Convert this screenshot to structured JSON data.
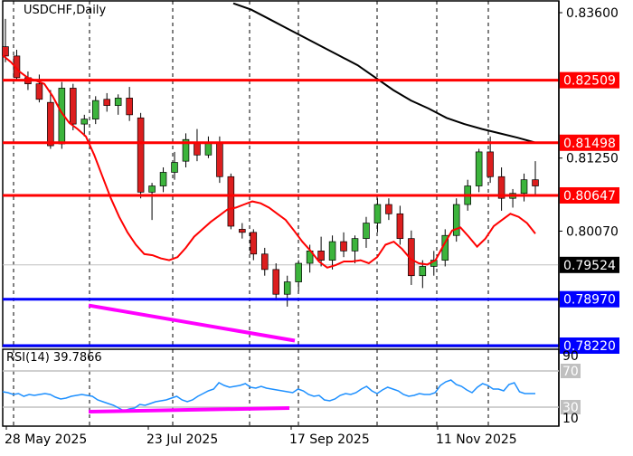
{
  "header": {
    "symbol_timeframe": "USDCHF,Daily",
    "rsi_label": "RSI(14) 39.7866"
  },
  "colors": {
    "background": "#ffffff",
    "frame": "#000000",
    "bull_candle": "#3cb43c",
    "bear_candle": "#dc1e1e",
    "resistance": "#ff0000",
    "support": "#0000ff",
    "divergence": "#ff00ff",
    "ma_fast": "#ff0000",
    "ma_slow": "#000000",
    "rsi_line": "#1e90ff",
    "rsi_levels": "#c0c0c0",
    "current_price_bg": "#000000"
  },
  "price_axis": {
    "ticks": [
      "0.83600",
      "0.81250",
      "0.80070"
    ],
    "tick_values": [
      0.836,
      0.8125,
      0.8007
    ]
  },
  "levels": [
    {
      "label": "0.82509",
      "value": 0.82509,
      "type": "resistance"
    },
    {
      "label": "0.81498",
      "value": 0.81498,
      "type": "resistance"
    },
    {
      "label": "0.80647",
      "value": 0.80647,
      "type": "resistance"
    },
    {
      "label": "0.78970",
      "value": 0.7897,
      "type": "support"
    },
    {
      "label": "0.78220",
      "value": 0.7822,
      "type": "support"
    }
  ],
  "current_price": {
    "label": "0.79524",
    "value": 0.79524
  },
  "rsi_axis": {
    "ticks": [
      "90",
      "70",
      "30",
      "10"
    ],
    "highlighted": [
      "70",
      "30"
    ]
  },
  "time_axis": {
    "labels": [
      "28 May 2025",
      "23 Jul 2025",
      "17 Sep 2025",
      "11 Nov 2025"
    ]
  },
  "chart_data": {
    "type": "candlestick",
    "title": "USDCHF,Daily",
    "xlabel": "",
    "ylabel": "",
    "ylim": [
      0.7818,
      0.8375
    ],
    "grid": "vertical dashed",
    "x_tick_labels": [
      "28 May 2025",
      "23 Jul 2025",
      "17 Sep 2025",
      "11 Nov 2025"
    ],
    "horizontal_levels": {
      "resistance": [
        0.82509,
        0.81498,
        0.80647
      ],
      "support": [
        0.7897,
        0.7822
      ]
    },
    "current_price": 0.79524,
    "indicators": {
      "ma_fast_approx": [
        0.8291,
        0.828,
        0.8265,
        0.8255,
        0.825,
        0.8245,
        0.8225,
        0.82,
        0.8182,
        0.8172,
        0.816,
        0.813,
        0.8095,
        0.806,
        0.803,
        0.8005,
        0.7985,
        0.797,
        0.7968,
        0.7963,
        0.796,
        0.7965,
        0.798,
        0.7998,
        0.801,
        0.8022,
        0.8032,
        0.8042,
        0.8045,
        0.805,
        0.8055,
        0.8052,
        0.8045,
        0.8035,
        0.8025,
        0.8008,
        0.799,
        0.7975,
        0.7958,
        0.7948,
        0.7952,
        0.7958,
        0.7958,
        0.796,
        0.7955,
        0.7965,
        0.7985,
        0.799,
        0.7978,
        0.7962,
        0.7955,
        0.7953,
        0.796,
        0.7985,
        0.8008,
        0.8013,
        0.7998,
        0.7982,
        0.7995,
        0.8015,
        0.8025,
        0.8035,
        0.803,
        0.802,
        0.8003
      ],
      "ma_slow_approx_label": "long-period moving average (black), declining from above 0.836 to ~0.8150",
      "ma_slow_approx": [
        0.8375,
        0.8365,
        0.835,
        0.8335,
        0.832,
        0.8305,
        0.829,
        0.8275,
        0.8255,
        0.8235,
        0.8218,
        0.8205,
        0.819,
        0.818,
        0.8172,
        0.8165,
        0.8158,
        0.815
      ],
      "rsi_period": 14,
      "rsi_current": 39.7866,
      "rsi_levels": [
        70,
        30
      ]
    },
    "annotations": [
      {
        "type": "bearish-price-divergence-line",
        "from_price": 0.7887,
        "to_price": 0.783,
        "note": "magenta line connecting lower lows in price"
      },
      {
        "type": "rsi-divergence-line",
        "from_rsi": 25,
        "to_rsi": 29,
        "note": "magenta line connecting higher lows in RSI"
      }
    ],
    "candles": [
      [
        0.8305,
        0.835,
        0.828,
        0.829
      ],
      [
        0.829,
        0.83,
        0.825,
        0.8255
      ],
      [
        0.8255,
        0.8265,
        0.8235,
        0.8245
      ],
      [
        0.8245,
        0.826,
        0.8215,
        0.822
      ],
      [
        0.8215,
        0.8235,
        0.814,
        0.8145
      ],
      [
        0.8148,
        0.8248,
        0.814,
        0.8238
      ],
      [
        0.8238,
        0.8245,
        0.817,
        0.818
      ],
      [
        0.818,
        0.8195,
        0.816,
        0.8188
      ],
      [
        0.8188,
        0.8225,
        0.818,
        0.8218
      ],
      [
        0.822,
        0.823,
        0.82,
        0.821
      ],
      [
        0.821,
        0.8228,
        0.8195,
        0.8222
      ],
      [
        0.8222,
        0.824,
        0.8185,
        0.8195
      ],
      [
        0.819,
        0.8198,
        0.806,
        0.807
      ],
      [
        0.807,
        0.8085,
        0.8025,
        0.808
      ],
      [
        0.808,
        0.811,
        0.807,
        0.8102
      ],
      [
        0.8102,
        0.8135,
        0.809,
        0.8118
      ],
      [
        0.812,
        0.8165,
        0.811,
        0.8155
      ],
      [
        0.815,
        0.8172,
        0.812,
        0.813
      ],
      [
        0.813,
        0.816,
        0.8125,
        0.815
      ],
      [
        0.815,
        0.816,
        0.8085,
        0.8095
      ],
      [
        0.8095,
        0.81,
        0.801,
        0.8015
      ],
      [
        0.801,
        0.802,
        0.7995,
        0.8005
      ],
      [
        0.8005,
        0.801,
        0.796,
        0.797
      ],
      [
        0.797,
        0.798,
        0.7935,
        0.7945
      ],
      [
        0.7945,
        0.7955,
        0.7895,
        0.7905
      ],
      [
        0.7905,
        0.7935,
        0.7885,
        0.7925
      ],
      [
        0.7925,
        0.796,
        0.791,
        0.7955
      ],
      [
        0.7955,
        0.7985,
        0.794,
        0.7975
      ],
      [
        0.7975,
        0.7998,
        0.795,
        0.796
      ],
      [
        0.796,
        0.8,
        0.7945,
        0.799
      ],
      [
        0.799,
        0.8005,
        0.7965,
        0.7975
      ],
      [
        0.7975,
        0.8,
        0.7955,
        0.7995
      ],
      [
        0.7995,
        0.803,
        0.798,
        0.802
      ],
      [
        0.802,
        0.806,
        0.8005,
        0.805
      ],
      [
        0.805,
        0.806,
        0.8025,
        0.8035
      ],
      [
        0.8035,
        0.8048,
        0.7985,
        0.7995
      ],
      [
        0.7995,
        0.8008,
        0.792,
        0.7935
      ],
      [
        0.7935,
        0.796,
        0.7915,
        0.795
      ],
      [
        0.795,
        0.7975,
        0.7935,
        0.796
      ],
      [
        0.796,
        0.801,
        0.795,
        0.8
      ],
      [
        0.8,
        0.806,
        0.799,
        0.805
      ],
      [
        0.805,
        0.809,
        0.804,
        0.808
      ],
      [
        0.808,
        0.814,
        0.807,
        0.8135
      ],
      [
        0.8135,
        0.816,
        0.8085,
        0.8095
      ],
      [
        0.8095,
        0.811,
        0.804,
        0.806
      ],
      [
        0.806,
        0.8075,
        0.8045,
        0.8068
      ],
      [
        0.8068,
        0.81,
        0.8055,
        0.809
      ],
      [
        0.809,
        0.812,
        0.8065,
        0.808
      ]
    ],
    "rsi_approx": [
      47,
      46,
      44,
      45,
      42,
      44,
      43,
      44,
      45,
      44,
      41,
      39,
      40,
      42,
      43,
      44,
      43,
      42,
      38,
      36,
      34,
      32,
      29,
      26,
      28,
      29,
      33,
      32,
      34,
      36,
      37,
      38,
      40,
      42,
      38,
      36,
      38,
      42,
      45,
      48,
      50,
      57,
      54,
      52,
      53,
      54,
      56,
      52,
      51,
      53,
      51,
      50,
      49,
      48,
      47,
      46,
      50,
      48,
      44,
      42,
      43,
      38,
      37,
      39,
      43,
      45,
      44,
      46,
      50,
      53,
      48,
      45,
      49,
      52,
      50,
      48,
      44,
      42,
      43,
      45,
      44,
      44,
      46,
      54,
      58,
      60,
      55,
      53,
      49,
      46,
      52,
      56,
      54,
      50,
      50,
      48,
      55,
      57,
      47,
      45,
      45,
      45
    ]
  }
}
